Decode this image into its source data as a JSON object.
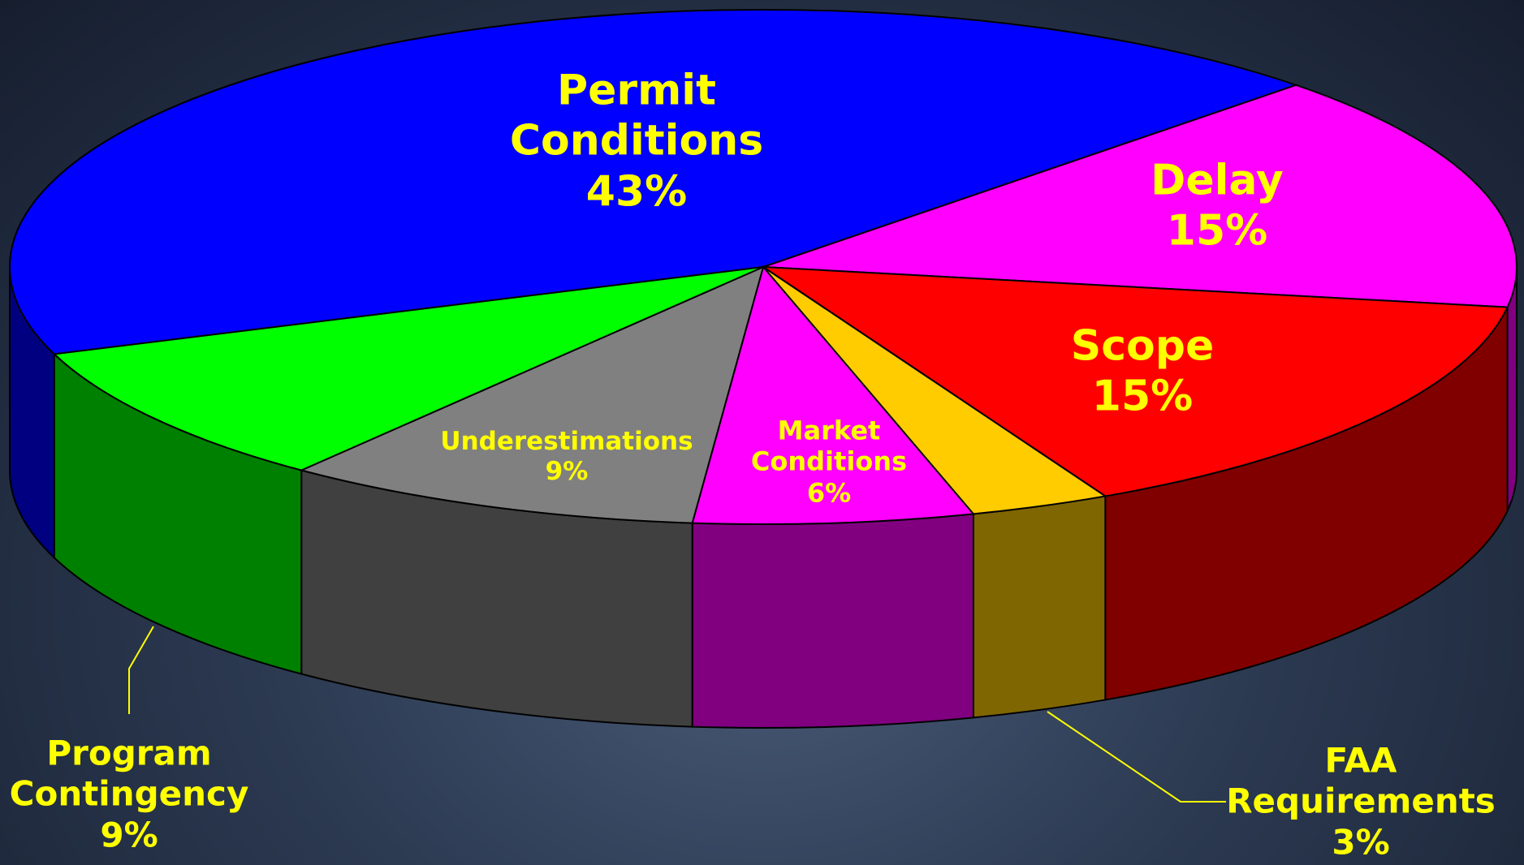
{
  "chart_data": {
    "type": "pie",
    "categories": [
      "Permit Conditions",
      "Delay",
      "Scope",
      "FAA Requirements",
      "Market Conditions",
      "Underestimations",
      "Program Contingency"
    ],
    "values": [
      43,
      15,
      15,
      3,
      6,
      9,
      9
    ],
    "value_labels": [
      "43%",
      "15%",
      "15%",
      "3%",
      "6%",
      "9%",
      "9%"
    ],
    "colors": [
      "#0000ff",
      "#ff00ff",
      "#ff0000",
      "#ffcc00",
      "#ff00ff",
      "#808080",
      "#00ff00"
    ]
  }
}
